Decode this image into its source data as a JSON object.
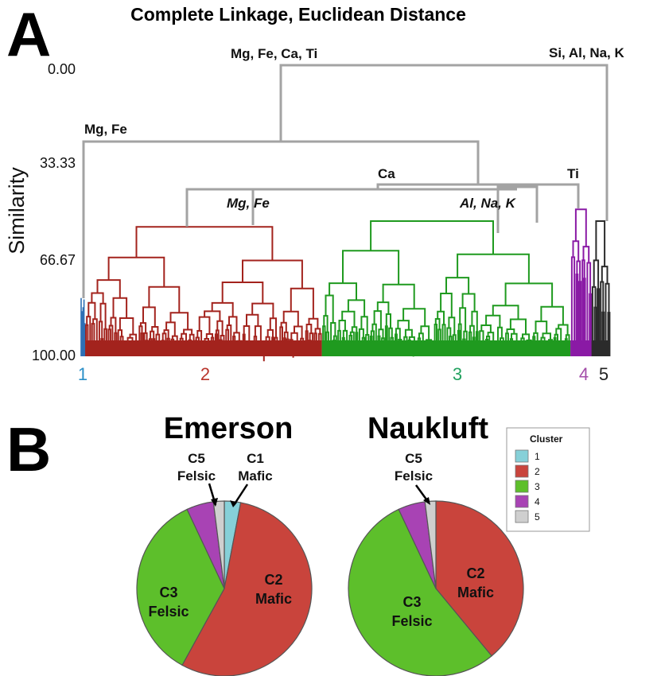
{
  "panels": {
    "a": "A",
    "b": "B"
  },
  "chart_data": [
    {
      "type": "dendrogram",
      "title": "Complete Linkage, Euclidean Distance",
      "ylabel": "Similarity",
      "yticks": [
        "0.00",
        "33.33",
        "66.67",
        "100.00"
      ],
      "ylim": [
        0,
        100
      ],
      "cluster_labels": [
        {
          "label": "1",
          "color": "#2a8fc7"
        },
        {
          "label": "2",
          "color": "#b9352c"
        },
        {
          "label": "3",
          "color": "#23a260"
        },
        {
          "label": "4",
          "color": "#a34ea9"
        },
        {
          "label": "5",
          "color": "#222222"
        }
      ],
      "clusters": [
        {
          "id": 1,
          "color": "#2e6fb5",
          "leaf_start": 0.0,
          "leaf_end": 0.008,
          "top_similarity": 80
        },
        {
          "id": 2,
          "color": "#a3231d",
          "leaf_start": 0.008,
          "leaf_end": 0.455,
          "top_similarity": 55
        },
        {
          "id": 3,
          "color": "#1f9a1f",
          "leaf_start": 0.455,
          "leaf_end": 0.925,
          "top_similarity": 53
        },
        {
          "id": 4,
          "color": "#8a1aa5",
          "leaf_start": 0.925,
          "leaf_end": 0.965,
          "top_similarity": 49
        },
        {
          "id": 5,
          "color": "#2b2b2b",
          "leaf_start": 0.965,
          "leaf_end": 1.0,
          "top_similarity": 53
        }
      ],
      "merges": [
        {
          "label": "Mg, Fe",
          "italic": true,
          "similarity": 42
        },
        {
          "label": "Al, Na, K",
          "italic": true,
          "similarity": 42
        },
        {
          "label": "Ca",
          "similarity": 41
        },
        {
          "label": "Ti",
          "similarity": 41
        },
        {
          "label": "Mg, Fe",
          "similarity": 26
        },
        {
          "label": "Mg, Fe, Ca, Ti",
          "similarity": 1
        },
        {
          "label": "Si, Al, Na, K",
          "similarity": 1
        }
      ]
    },
    {
      "type": "pie",
      "title": "Emerson",
      "slices": [
        {
          "cluster": "1",
          "value": 3,
          "color": "#86d0d8"
        },
        {
          "cluster": "2",
          "value": 55,
          "color": "#c9443c"
        },
        {
          "cluster": "3",
          "value": 35,
          "color": "#5dbf2b"
        },
        {
          "cluster": "4",
          "value": 5,
          "color": "#a843b4"
        },
        {
          "cluster": "5",
          "value": 2,
          "color": "#cfcfcf"
        }
      ],
      "labels": [
        {
          "line1": "C2",
          "line2": "Mafic"
        },
        {
          "line1": "C3",
          "line2": "Felsic"
        }
      ],
      "callouts": [
        {
          "line1": "C5",
          "line2": "Felsic"
        },
        {
          "line1": "C1",
          "line2": "Mafic"
        }
      ]
    },
    {
      "type": "pie",
      "title": "Naukluft",
      "slices": [
        {
          "cluster": "2",
          "value": 39,
          "color": "#c9443c"
        },
        {
          "cluster": "3",
          "value": 54,
          "color": "#5dbf2b"
        },
        {
          "cluster": "4",
          "value": 5,
          "color": "#a843b4"
        },
        {
          "cluster": "5",
          "value": 2,
          "color": "#cfcfcf"
        }
      ],
      "labels": [
        {
          "line1": "C2",
          "line2": "Mafic"
        },
        {
          "line1": "C3",
          "line2": "Felsic"
        }
      ],
      "callouts": [
        {
          "line1": "C5",
          "line2": "Felsic"
        }
      ]
    }
  ],
  "legend": {
    "title": "Cluster",
    "items": [
      {
        "label": "1",
        "color": "#86d0d8"
      },
      {
        "label": "2",
        "color": "#c9443c"
      },
      {
        "label": "3",
        "color": "#5dbf2b"
      },
      {
        "label": "4",
        "color": "#a843b4"
      },
      {
        "label": "5",
        "color": "#cfcfcf"
      }
    ]
  }
}
